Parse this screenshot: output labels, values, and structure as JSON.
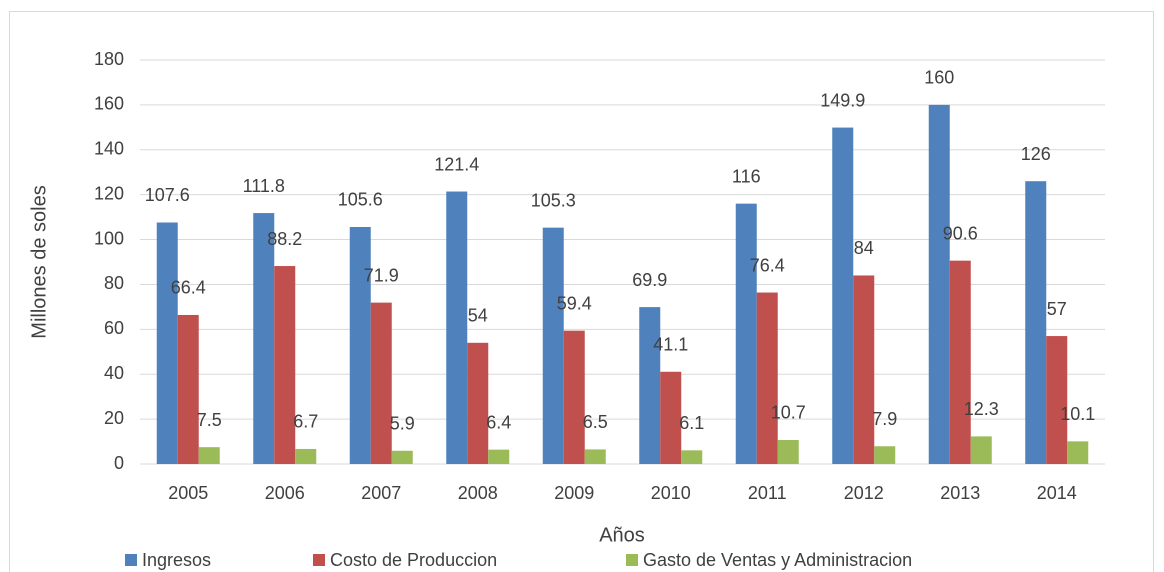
{
  "chart_data": {
    "type": "bar",
    "categories": [
      "2005",
      "2006",
      "2007",
      "2008",
      "2009",
      "2010",
      "2011",
      "2012",
      "2013",
      "2014"
    ],
    "series": [
      {
        "name": "Ingresos",
        "color": "#4f81bd",
        "values": [
          107.6,
          111.8,
          105.6,
          121.4,
          105.3,
          69.9,
          116,
          149.9,
          160,
          126
        ]
      },
      {
        "name": "Costo de Produccion",
        "color": "#c0504d",
        "values": [
          66.4,
          88.2,
          71.9,
          54,
          59.4,
          41.1,
          76.4,
          84,
          90.6,
          57
        ]
      },
      {
        "name": "Gasto de Ventas y Administracion",
        "color": "#9bbb59",
        "values": [
          7.5,
          6.7,
          5.9,
          6.4,
          6.5,
          6.1,
          10.7,
          7.9,
          12.3,
          10.1
        ]
      }
    ],
    "ylim": [
      0,
      180
    ],
    "yticks": [
      0,
      20,
      40,
      60,
      80,
      100,
      120,
      140,
      160,
      180
    ],
    "ylabel": "Millones de  soles",
    "xlabel": "Años",
    "grid": true,
    "legend": "bottom"
  }
}
